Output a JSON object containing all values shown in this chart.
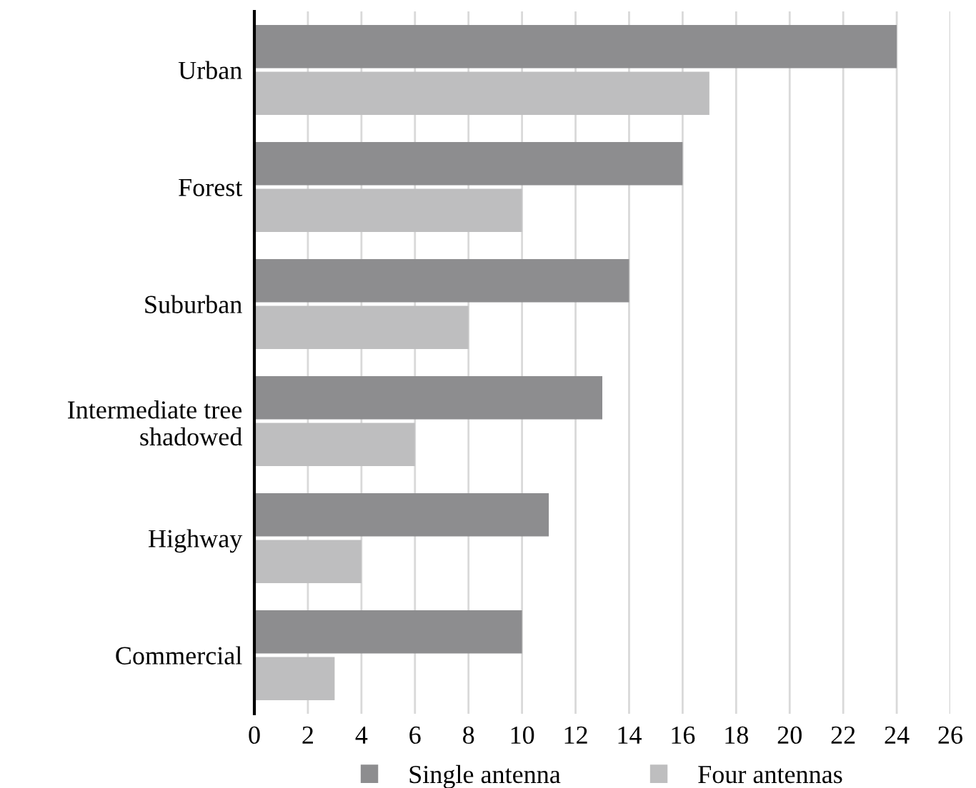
{
  "chart_data": {
    "type": "bar",
    "orientation": "horizontal",
    "categories": [
      "Urban",
      "Forest",
      "Suburban",
      "Intermediate tree shadowed",
      "Highway",
      "Commercial"
    ],
    "series": [
      {
        "name": "Single antenna",
        "color": "#8d8d8f",
        "values": [
          24,
          16,
          14,
          13,
          11,
          10
        ]
      },
      {
        "name": "Four antennas",
        "color": "#bebebf",
        "values": [
          17,
          10,
          8,
          6,
          4,
          3
        ]
      }
    ],
    "xlim": [
      0,
      26
    ],
    "xticks": [
      0,
      2,
      4,
      6,
      8,
      10,
      12,
      14,
      16,
      18,
      20,
      22,
      24,
      26
    ],
    "grid": "x",
    "legend": "bottom"
  }
}
